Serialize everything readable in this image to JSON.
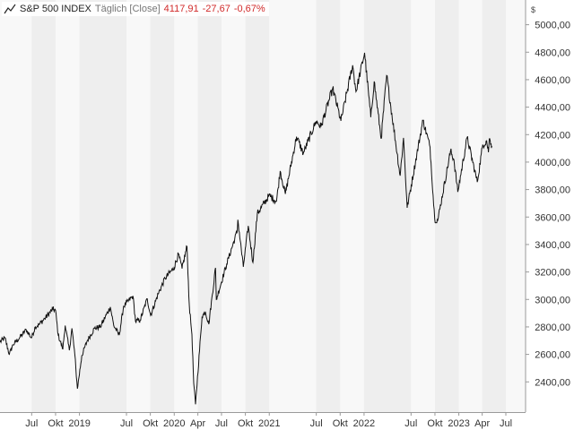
{
  "legend": {
    "icon": "line-chart-icon",
    "name": "S&P 500 INDEX",
    "period": "Täglich [Close]",
    "last": "4117,91",
    "change": "-27,67",
    "change_pct": "-0,67%",
    "value_color": "#d12b2b"
  },
  "colors": {
    "line": "#111111",
    "band_light": "#f8f8f8",
    "band_dark": "#eeeeee",
    "axis_bg": "#ffffff"
  },
  "chart_data": {
    "type": "line",
    "series": [
      {
        "name": "S&P 500 INDEX",
        "points": [
          [
            "2018-03-01",
            2690
          ],
          [
            "2018-03-20",
            2720
          ],
          [
            "2018-04-06",
            2600
          ],
          [
            "2018-04-20",
            2670
          ],
          [
            "2018-05-15",
            2720
          ],
          [
            "2018-06-10",
            2780
          ],
          [
            "2018-06-30",
            2720
          ],
          [
            "2018-07-15",
            2800
          ],
          [
            "2018-07-31",
            2820
          ],
          [
            "2018-08-20",
            2860
          ],
          [
            "2018-09-20",
            2930
          ],
          [
            "2018-10-01",
            2920
          ],
          [
            "2018-10-11",
            2740
          ],
          [
            "2018-10-29",
            2640
          ],
          [
            "2018-11-07",
            2810
          ],
          [
            "2018-11-23",
            2630
          ],
          [
            "2018-12-03",
            2790
          ],
          [
            "2018-12-14",
            2600
          ],
          [
            "2018-12-24",
            2350
          ],
          [
            "2019-01-10",
            2590
          ],
          [
            "2019-01-31",
            2700
          ],
          [
            "2019-02-28",
            2790
          ],
          [
            "2019-03-22",
            2800
          ],
          [
            "2019-04-30",
            2945
          ],
          [
            "2019-05-13",
            2810
          ],
          [
            "2019-06-03",
            2740
          ],
          [
            "2019-06-20",
            2950
          ],
          [
            "2019-07-26",
            3025
          ],
          [
            "2019-08-05",
            2840
          ],
          [
            "2019-08-23",
            2850
          ],
          [
            "2019-09-19",
            3005
          ],
          [
            "2019-10-02",
            2885
          ],
          [
            "2019-10-31",
            3040
          ],
          [
            "2019-11-27",
            3155
          ],
          [
            "2019-12-31",
            3230
          ],
          [
            "2020-01-17",
            3330
          ],
          [
            "2020-01-31",
            3225
          ],
          [
            "2020-02-19",
            3386
          ],
          [
            "2020-02-28",
            2955
          ],
          [
            "2020-03-09",
            2745
          ],
          [
            "2020-03-16",
            2390
          ],
          [
            "2020-03-23",
            2237
          ],
          [
            "2020-04-17",
            2875
          ],
          [
            "2020-04-30",
            2912
          ],
          [
            "2020-05-13",
            2820
          ],
          [
            "2020-06-08",
            3230
          ],
          [
            "2020-06-11",
            3000
          ],
          [
            "2020-07-21",
            3258
          ],
          [
            "2020-08-31",
            3500
          ],
          [
            "2020-09-02",
            3580
          ],
          [
            "2020-09-23",
            3237
          ],
          [
            "2020-10-12",
            3535
          ],
          [
            "2020-10-30",
            3270
          ],
          [
            "2020-11-16",
            3625
          ],
          [
            "2020-12-31",
            3756
          ],
          [
            "2021-01-29",
            3715
          ],
          [
            "2021-02-12",
            3935
          ],
          [
            "2021-03-04",
            3768
          ],
          [
            "2021-04-16",
            4185
          ],
          [
            "2021-05-12",
            4063
          ],
          [
            "2021-06-30",
            4297
          ],
          [
            "2021-07-19",
            4258
          ],
          [
            "2021-08-31",
            4523
          ],
          [
            "2021-09-02",
            4537
          ],
          [
            "2021-10-04",
            4300
          ],
          [
            "2021-11-18",
            4705
          ],
          [
            "2021-12-01",
            4513
          ],
          [
            "2022-01-03",
            4796
          ],
          [
            "2022-01-27",
            4326
          ],
          [
            "2022-02-09",
            4587
          ],
          [
            "2022-03-08",
            4170
          ],
          [
            "2022-03-29",
            4631
          ],
          [
            "2022-05-20",
            3901
          ],
          [
            "2022-06-02",
            4176
          ],
          [
            "2022-06-16",
            3667
          ],
          [
            "2022-08-16",
            4305
          ],
          [
            "2022-09-12",
            4110
          ],
          [
            "2022-09-30",
            3585
          ],
          [
            "2022-10-12",
            3577
          ],
          [
            "2022-11-30",
            4080
          ],
          [
            "2022-12-13",
            4019
          ],
          [
            "2022-12-28",
            3783
          ],
          [
            "2023-02-02",
            4179
          ],
          [
            "2023-03-13",
            3855
          ],
          [
            "2023-04-03",
            4124
          ],
          [
            "2023-04-18",
            4155
          ],
          [
            "2023-04-25",
            4071
          ],
          [
            "2023-04-28",
            4169
          ],
          [
            "2023-05-05",
            4136
          ],
          [
            "2023-05-08",
            4117.91
          ]
        ]
      }
    ],
    "y_ticks": [
      2400,
      2600,
      2800,
      3000,
      3200,
      3400,
      3600,
      3800,
      4000,
      4200,
      4400,
      4600,
      4800,
      5000
    ],
    "y_tick_labels": [
      "2400,00",
      "2600,00",
      "2800,00",
      "3000,00",
      "3200,00",
      "3400,00",
      "3600,00",
      "3800,00",
      "4000,00",
      "4200,00",
      "4400,00",
      "4600,00",
      "4800,00",
      "5000,00"
    ],
    "y_unit": "$",
    "x_ticks": [
      {
        "date": "2018-07-01",
        "label": "Jul"
      },
      {
        "date": "2018-10-01",
        "label": "Okt"
      },
      {
        "date": "2019-01-01",
        "label": "2019"
      },
      {
        "date": "2019-07-01",
        "label": "Jul"
      },
      {
        "date": "2019-10-01",
        "label": "Okt"
      },
      {
        "date": "2020-01-01",
        "label": "2020"
      },
      {
        "date": "2020-04-01",
        "label": "Apr"
      },
      {
        "date": "2020-07-01",
        "label": "Jul"
      },
      {
        "date": "2020-10-01",
        "label": "Okt"
      },
      {
        "date": "2021-01-01",
        "label": "2021"
      },
      {
        "date": "2021-07-01",
        "label": "Jul"
      },
      {
        "date": "2021-10-01",
        "label": "Okt"
      },
      {
        "date": "2022-01-01",
        "label": "2022"
      },
      {
        "date": "2022-07-01",
        "label": "Jul"
      },
      {
        "date": "2022-10-01",
        "label": "Okt"
      },
      {
        "date": "2023-01-01",
        "label": "2023"
      },
      {
        "date": "2023-04-01",
        "label": "Apr"
      },
      {
        "date": "2023-07-01",
        "label": "Jul"
      }
    ],
    "x_range": [
      "2018-03-01",
      "2023-09-15"
    ],
    "y_range": [
      2180,
      5180
    ],
    "grid": "vertical-bands",
    "legend_position": "top-left"
  }
}
